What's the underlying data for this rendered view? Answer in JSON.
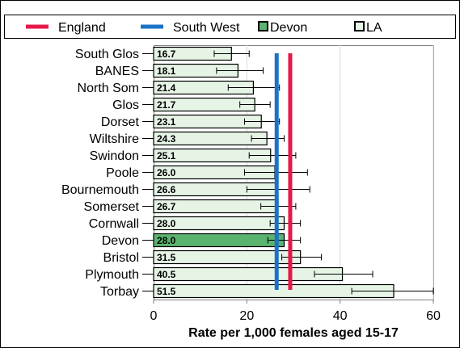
{
  "chart_data": {
    "type": "bar",
    "orientation": "horizontal",
    "categories": [
      "South Glos",
      "BANES",
      "North Som",
      "Glos",
      "Dorset",
      "Wiltshire",
      "Swindon",
      "Poole",
      "Bournemouth",
      "Somerset",
      "Cornwall",
      "Devon",
      "Bristol",
      "Plymouth",
      "Torbay"
    ],
    "values": [
      16.7,
      18.1,
      21.4,
      21.7,
      23.1,
      24.3,
      25.1,
      26.0,
      26.6,
      26.7,
      28.0,
      28.0,
      31.5,
      40.5,
      51.5
    ],
    "value_labels": [
      "16.7",
      "18.1",
      "21.4",
      "21.7",
      "23.1",
      "24.3",
      "25.1",
      "26.0",
      "26.6",
      "26.7",
      "28.0",
      "28.0",
      "31.5",
      "40.5",
      "51.5"
    ],
    "error_low": [
      13.0,
      13.5,
      16.0,
      18.5,
      19.5,
      21.0,
      20.5,
      19.5,
      20.0,
      23.0,
      25.0,
      24.5,
      27.5,
      34.5,
      42.5
    ],
    "error_high": [
      20.5,
      23.5,
      27.0,
      25.0,
      27.0,
      28.0,
      30.5,
      33.0,
      33.5,
      30.5,
      31.5,
      31.5,
      36.0,
      47.0,
      60.0
    ],
    "highlight_category": "Devon",
    "reference_lines": [
      {
        "name": "England",
        "value": 29.3,
        "color": "#e8174a"
      },
      {
        "name": "South West",
        "value": 26.4,
        "color": "#1a73c7"
      }
    ],
    "legend": {
      "position": "top",
      "items": [
        {
          "label": "England",
          "kind": "line",
          "color": "#e8174a"
        },
        {
          "label": "South West",
          "kind": "line",
          "color": "#1a73c7"
        },
        {
          "label": "Devon",
          "kind": "box",
          "color": "#5ab36e"
        },
        {
          "label": "LA",
          "kind": "box",
          "color": "#e6f4e6"
        }
      ]
    },
    "xlim": [
      0,
      60
    ],
    "xticks": [
      0,
      20,
      40,
      60
    ],
    "xlabel": "Rate per 1,000 females aged 15-17",
    "grid": "vertical",
    "colors": {
      "bar": "#e6f4e6",
      "highlight": "#5ab36e",
      "grid": "#d9d9d9",
      "error": "#000000"
    }
  }
}
